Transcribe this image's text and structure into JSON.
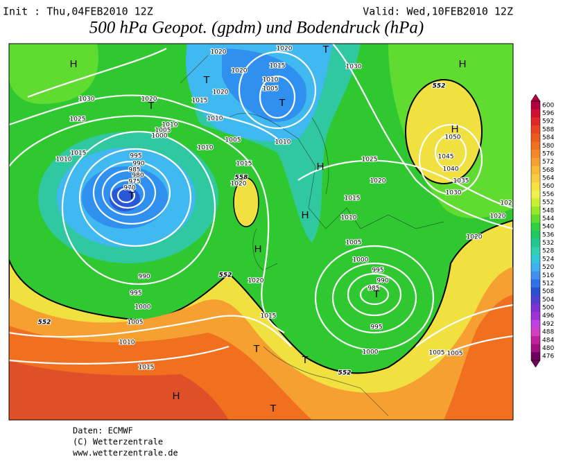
{
  "header": {
    "init": "Init : Thu,04FEB2010 12Z",
    "valid": "Valid: Wed,10FEB2010 12Z",
    "title": "500 hPa Geopot. (gpdm) und Bodendruck (hPa)"
  },
  "map": {
    "pressure_labels": [
      "1020",
      "1020",
      "1015",
      "1020",
      "1010",
      "1005",
      "1020",
      "1015",
      "1030",
      "1030",
      "1025",
      "1020",
      "1010",
      "1005",
      "1000",
      "1010",
      "1005",
      "1010",
      "1010",
      "1015",
      "1010",
      "995",
      "990",
      "985",
      "980",
      "975",
      "970",
      "1015",
      "1020",
      "1025",
      "1020",
      "1015",
      "1010",
      "1005",
      "1000",
      "995",
      "990",
      "985",
      "995",
      "1000",
      "1005",
      "1005",
      "1050",
      "1045",
      "1040",
      "1035",
      "1030",
      "1020",
      "102",
      "1020",
      "990",
      "995",
      "1000",
      "1005",
      "1010",
      "1015",
      "1020",
      "1015"
    ],
    "contour_labels": [
      "552",
      "552",
      "558",
      "552",
      "552"
    ],
    "centers": [
      "H",
      "H",
      "H",
      "T",
      "T",
      "T",
      "T",
      "H",
      "T",
      "H",
      "H",
      "T",
      "T",
      "H",
      "T",
      "T"
    ]
  },
  "legend": {
    "levels": [
      "600",
      "596",
      "592",
      "588",
      "584",
      "580",
      "576",
      "572",
      "568",
      "564",
      "560",
      "556",
      "552",
      "548",
      "544",
      "540",
      "536",
      "532",
      "528",
      "524",
      "520",
      "516",
      "512",
      "508",
      "504",
      "500",
      "496",
      "492",
      "488",
      "484",
      "480",
      "476"
    ],
    "colors": [
      "#b00040",
      "#d01030",
      "#e02828",
      "#e84420",
      "#ec5a20",
      "#f07020",
      "#f48828",
      "#f5a030",
      "#f8b838",
      "#f8cc40",
      "#f8e040",
      "#f0f050",
      "#c8f030",
      "#98e828",
      "#60dc30",
      "#30d040",
      "#20c860",
      "#20c890",
      "#30d0b0",
      "#30c8d8",
      "#40b0f0",
      "#4090f0",
      "#3070e8",
      "#2850d0",
      "#5040d0",
      "#8030d0",
      "#a030d8",
      "#c040e0",
      "#d040c0",
      "#c020a0",
      "#a01080",
      "#700060"
    ]
  },
  "footer": {
    "source": "Daten: ECMWF",
    "copyright": "(C) Wetterzentrale",
    "url": "www.wetterzentrale.de"
  }
}
